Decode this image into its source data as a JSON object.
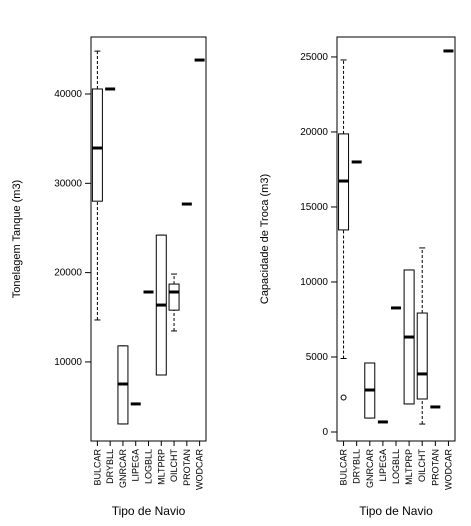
{
  "chart_data": [
    {
      "type": "boxplot",
      "ylabel": "Tonelagem Tanque (m3)",
      "xlabel": "Tipo de Navio",
      "categories": [
        "BULCAR",
        "DRYBLL",
        "GNRCAR",
        "LIPEGA",
        "LOGBLL",
        "MLTPRP",
        "OILCHT",
        "PROTAN",
        "WODCAR"
      ],
      "boxes": [
        {
          "min": 14700,
          "q1": 28000,
          "median": 33950,
          "q3": 40560,
          "max": 44800
        },
        {
          "min": 40560,
          "q1": 40560,
          "median": 40560,
          "q3": 40560,
          "max": 40560
        },
        {
          "min": 3060,
          "q1": 3060,
          "median": 7530,
          "q3": 11800,
          "max": 11800
        },
        {
          "min": 5300,
          "q1": 5300,
          "median": 5300,
          "q3": 5300,
          "max": 5300
        },
        {
          "min": 17830,
          "q1": 17830,
          "median": 17830,
          "q3": 17830,
          "max": 17830
        },
        {
          "min": 8540,
          "q1": 8540,
          "median": 16370,
          "q3": 24200,
          "max": 24200
        },
        {
          "min": 13470,
          "q1": 15800,
          "median": 17830,
          "q3": 18720,
          "max": 19840
        },
        {
          "min": 27680,
          "q1": 27680,
          "median": 27680,
          "q3": 27680,
          "max": 27680
        },
        {
          "min": 43800,
          "q1": 43800,
          "median": 43800,
          "q3": 43800,
          "max": 43800
        }
      ],
      "ylim": [
        1150,
        46380
      ],
      "yticks": [
        10000,
        20000,
        30000,
        40000
      ]
    },
    {
      "type": "boxplot",
      "ylabel": "Capacidade de Troca  (m3)",
      "xlabel": "Tipo de Navio",
      "categories": [
        "BULCAR",
        "DRYBLL",
        "GNRCAR",
        "LIPEGA",
        "LOGBLL",
        "MLTPRP",
        "OILCHT",
        "PROTAN",
        "WODCAR"
      ],
      "boxes": [
        {
          "min": 4900,
          "q1": 13470,
          "median": 16730,
          "q3": 19870,
          "max": 24800,
          "outliers": [
            2300
          ]
        },
        {
          "min": 18000,
          "q1": 18000,
          "median": 18000,
          "q3": 18000,
          "max": 18000
        },
        {
          "min": 930,
          "q1": 930,
          "median": 2800,
          "q3": 4600,
          "max": 4600
        },
        {
          "min": 670,
          "q1": 670,
          "median": 670,
          "q3": 670,
          "max": 670
        },
        {
          "min": 8270,
          "q1": 8270,
          "median": 8270,
          "q3": 8270,
          "max": 8270
        },
        {
          "min": 1870,
          "q1": 1870,
          "median": 6330,
          "q3": 10800,
          "max": 10800
        },
        {
          "min": 530,
          "q1": 2200,
          "median": 3870,
          "q3": 7930,
          "max": 12270
        },
        {
          "min": 1670,
          "q1": 1670,
          "median": 1670,
          "q3": 1670,
          "max": 1670
        },
        {
          "min": 25400,
          "q1": 25400,
          "median": 25400,
          "q3": 25400,
          "max": 25400
        }
      ],
      "ylim": [
        -600,
        26330
      ],
      "yticks": [
        0,
        5000,
        10000,
        15000,
        20000,
        25000
      ]
    }
  ]
}
